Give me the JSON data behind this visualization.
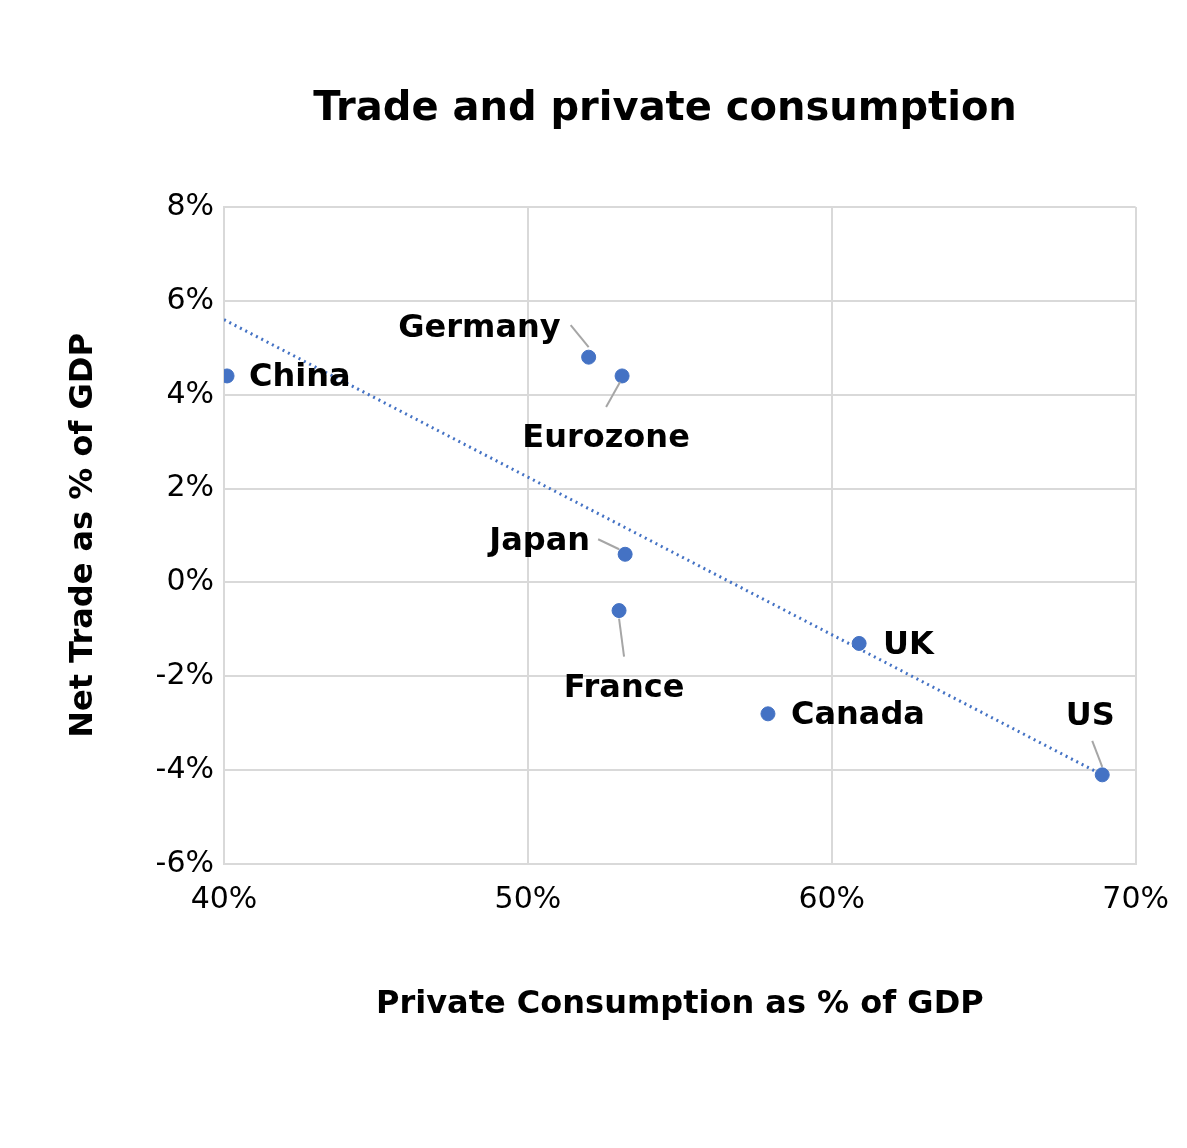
{
  "chart_data": {
    "type": "scatter",
    "title": "Trade and private consumption",
    "xlabel": "Private Consumption as % of GDP",
    "ylabel": "Net Trade as % of GDP",
    "series": [
      {
        "color": "#4472c4",
        "marker": "circle",
        "x": [
          40.1,
          52.0,
          53.1,
          53.2,
          53.0,
          57.9,
          60.9,
          68.9
        ],
        "values": [
          4.4,
          4.8,
          4.4,
          0.6,
          -0.6,
          -2.8,
          -1.3,
          -4.1
        ]
      },
      {
        "type": "line",
        "color": "#4472c4",
        "marker": "none",
        "line_style": "dotted",
        "x": [
          40,
          68.9
        ],
        "values": [
          5.6,
          -4.1
        ]
      }
    ],
    "annotations": [
      {
        "text": "China",
        "x": 40.1,
        "y": 4.4
      },
      {
        "text": "Germany",
        "x": 52.0,
        "y": 4.8
      },
      {
        "text": "Eurozone",
        "x": 53.1,
        "y": 4.4
      },
      {
        "text": "Japan",
        "x": 53.2,
        "y": 0.6
      },
      {
        "text": "France",
        "x": 53.0,
        "y": -0.6
      },
      {
        "text": "Canada",
        "x": 57.9,
        "y": -2.8
      },
      {
        "text": "UK",
        "x": 60.9,
        "y": -1.3
      },
      {
        "text": "US",
        "x": 68.9,
        "y": -4.1
      }
    ],
    "xlim": [
      40,
      70
    ],
    "xticks": [
      {
        "value": 40,
        "label": "40%"
      },
      {
        "value": 50,
        "label": "50%"
      },
      {
        "value": 60,
        "label": "60%"
      },
      {
        "value": 70,
        "label": "70%"
      }
    ],
    "ylim": [
      -6,
      8
    ],
    "yticks": [
      {
        "value": -6,
        "label": "-6%"
      },
      {
        "value": -4,
        "label": "-4%"
      },
      {
        "value": -2,
        "label": "-2%"
      },
      {
        "value": 0,
        "label": "0%"
      },
      {
        "value": 2,
        "label": "2%"
      },
      {
        "value": 4,
        "label": "4%"
      },
      {
        "value": 6,
        "label": "6%"
      },
      {
        "value": 8,
        "label": "8%"
      }
    ],
    "grid": true,
    "legend": false
  }
}
